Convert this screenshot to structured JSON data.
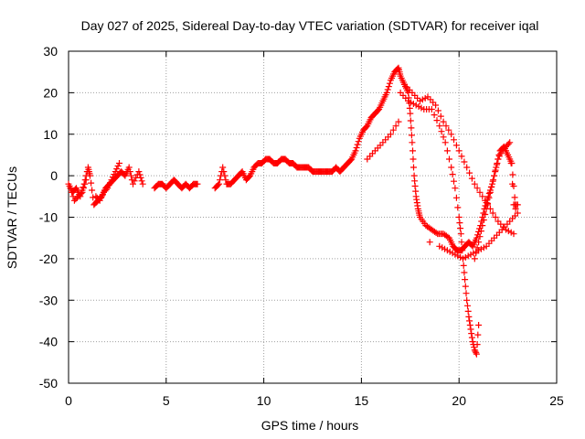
{
  "chart_data": {
    "type": "scatter",
    "title": "Day 027 of 2025, Sidereal Day-to-day VTEC variation (SDTVAR) for receiver iqal",
    "xlabel": "GPS time / hours",
    "ylabel": "SDTVAR / TECUs",
    "xlim": [
      0,
      25
    ],
    "ylim": [
      -50,
      30
    ],
    "xticks": [
      0,
      5,
      10,
      15,
      20,
      25
    ],
    "yticks": [
      -50,
      -40,
      -30,
      -20,
      -10,
      0,
      10,
      20,
      30
    ],
    "grid": true,
    "marker": "+",
    "marker_color": "#ff0000",
    "series": [
      {
        "name": "SDTVAR",
        "path_x": [
          0.0,
          0.2,
          0.4,
          0.6,
          0.8,
          1.0,
          1.1,
          1.3,
          1.5,
          1.7,
          1.9,
          2.1,
          2.3,
          2.5,
          2.7,
          2.9,
          3.1,
          3.3,
          3.6,
          3.8,
          4.4,
          4.6,
          4.8,
          5.0,
          5.2,
          5.4,
          5.6,
          5.8,
          6.0,
          6.2,
          6.4,
          6.6,
          7.5,
          7.7,
          7.9,
          8.1,
          8.3,
          8.5,
          8.7,
          8.9,
          9.1,
          9.3,
          9.5,
          9.7,
          9.9,
          10.1,
          10.3,
          10.5,
          10.7,
          10.9,
          11.1,
          11.3,
          11.5,
          11.7,
          11.9,
          12.1,
          12.3,
          12.5,
          12.7,
          12.9,
          13.1,
          13.3,
          13.5,
          13.7,
          13.9,
          14.1,
          14.3,
          14.5,
          14.7,
          14.9,
          15.1,
          15.3,
          15.5,
          15.7,
          15.9,
          16.1,
          16.3,
          16.5,
          16.7,
          16.9,
          17.0,
          17.2,
          17.4,
          17.5,
          17.6,
          17.7,
          17.8,
          17.9,
          18.0,
          18.3,
          18.6,
          18.9,
          19.2,
          19.5,
          19.7,
          19.9,
          20.1,
          20.3,
          20.5,
          20.7,
          20.9,
          21.1,
          21.3,
          21.5,
          21.7,
          21.9,
          22.1,
          22.3,
          22.5,
          22.7,
          22.9
        ],
        "path_y": [
          -2,
          -4,
          -3,
          -5,
          -2,
          2,
          0,
          -7,
          -6,
          -5,
          -3,
          -2,
          -1,
          0,
          1,
          0,
          2,
          -2,
          1,
          -2,
          -3,
          -2,
          -2,
          -3,
          -2,
          -1,
          -2,
          -3,
          -2,
          -3,
          -2,
          -2,
          -3,
          -2,
          2,
          -2,
          -2,
          -1,
          0,
          1,
          -1,
          0,
          2,
          3,
          3,
          4,
          4,
          3,
          3,
          4,
          4,
          3,
          3,
          2,
          2,
          2,
          2,
          1,
          1,
          1,
          1,
          1,
          1,
          2,
          1,
          2,
          3,
          4,
          6,
          9,
          11,
          12,
          14,
          15,
          16,
          18,
          20,
          23,
          25,
          26,
          24,
          22,
          20,
          15,
          8,
          0,
          -5,
          -8,
          -10,
          -12,
          -13,
          -14,
          -14,
          -15,
          -17,
          -18,
          -18,
          -17,
          -16,
          -17,
          -15,
          -12,
          -8,
          -5,
          -2,
          2,
          6,
          7,
          5,
          3,
          -8
        ],
        "extra_x": [
          17.0,
          17.4,
          17.8,
          18.2,
          18.6,
          19.0,
          19.3,
          19.6,
          19.8,
          20.0,
          20.1,
          20.2,
          20.3,
          20.4,
          20.5,
          20.6,
          20.7,
          20.8,
          20.9,
          21.0,
          17.2,
          17.6,
          18.0,
          18.4,
          18.8,
          19.2,
          19.6,
          20.0,
          20.4,
          20.8,
          21.2,
          21.6,
          22.0,
          22.4,
          22.8,
          15.3,
          15.7,
          16.1,
          16.5,
          16.9,
          18.5,
          19.0,
          19.4,
          19.8,
          20.2,
          20.6,
          21.0,
          21.4,
          21.8,
          22.2,
          22.6,
          23.0,
          20.8,
          21.0,
          21.2,
          21.4,
          21.6,
          21.8,
          22.0,
          22.2,
          22.4,
          22.6,
          22.8,
          23.0,
          0.1,
          0.3,
          0.5,
          0.7,
          0.9,
          1.4,
          1.6,
          1.8,
          2.0,
          2.2,
          2.4,
          2.6
        ],
        "extra_y": [
          20,
          18,
          17,
          16,
          16,
          12,
          8,
          2,
          -3,
          -10,
          -14,
          -20,
          -25,
          -30,
          -34,
          -37,
          -40,
          -42,
          -43,
          -36,
          22,
          20,
          18,
          19,
          17,
          13,
          10,
          6,
          2,
          -2,
          -5,
          -8,
          -11,
          -13,
          -14,
          4,
          6,
          8,
          10,
          13,
          -16,
          -17,
          -18,
          -19,
          -20,
          -19,
          -18,
          -17,
          -15,
          -13,
          -11,
          -9,
          -20,
          -16,
          -12,
          -8,
          -4,
          0,
          4,
          6,
          7,
          8,
          -7,
          -7,
          -3,
          -6,
          -5,
          -4,
          -1,
          -5,
          -6,
          -4,
          -3,
          -1,
          1,
          3
        ]
      }
    ]
  }
}
